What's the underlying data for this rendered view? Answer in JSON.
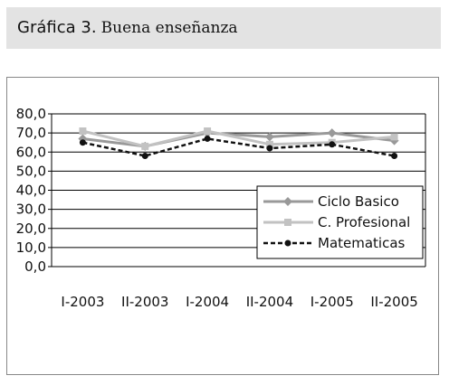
{
  "header": {
    "label": "Gráfica 3.",
    "title": "Buena enseñanza"
  },
  "chart_data": {
    "type": "line",
    "title": "Buena enseñanza",
    "xlabel": "",
    "ylabel": "",
    "ylim": [
      0,
      80
    ],
    "yticks": [
      "0,0",
      "10,0",
      "20,0",
      "30,0",
      "40,0",
      "50,0",
      "60,0",
      "70,0",
      "80,0"
    ],
    "categories": [
      "I-2003",
      "II-2003",
      "I-2004",
      "II-2004",
      "I-2005",
      "II-2005"
    ],
    "grid": "horizontal",
    "legend_position": "right",
    "series": [
      {
        "name": "Ciclo Basico",
        "values": [
          67,
          63,
          70,
          68,
          70,
          66
        ],
        "color": "#999999",
        "marker": "diamond",
        "dash": "solid"
      },
      {
        "name": "C. Profesional",
        "values": [
          71,
          63,
          71,
          64,
          65,
          68
        ],
        "color": "#c2c2c2",
        "marker": "square",
        "dash": "solid"
      },
      {
        "name": "Matematicas",
        "values": [
          65,
          58,
          67,
          62,
          64,
          58
        ],
        "color": "#111111",
        "marker": "circle",
        "dash": "dashed"
      }
    ]
  }
}
